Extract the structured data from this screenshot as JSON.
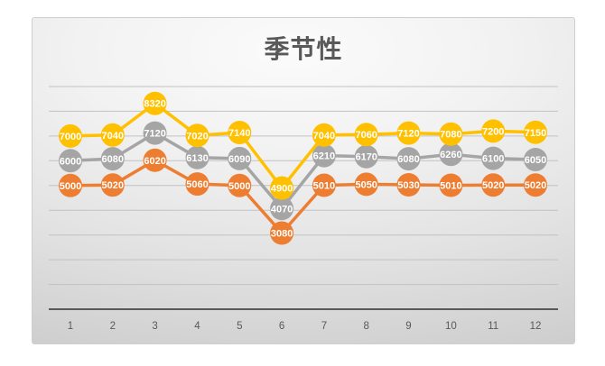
{
  "page": {
    "background_color": "#ffffff"
  },
  "chart": {
    "title": "季节性",
    "title_color": "#595959",
    "background_colors": [
      "#fbfbfb",
      "#e3e3e3",
      "#c5c5c5"
    ],
    "border_color": "#cfcfcf"
  },
  "chart_data": {
    "type": "line",
    "title": "季节性",
    "categories": [
      "1",
      "2",
      "3",
      "4",
      "5",
      "6",
      "7",
      "8",
      "9",
      "10",
      "11",
      "12"
    ],
    "series": [
      {
        "id": "orange-series",
        "color": "#ED7D31",
        "values": [
          5000,
          5020,
          6020,
          5060,
          5000,
          3080,
          5010,
          5050,
          5030,
          5010,
          5020,
          5020
        ]
      },
      {
        "id": "gray-series",
        "color": "#A5A5A5",
        "values": [
          6000,
          6080,
          7120,
          6130,
          6090,
          4070,
          6210,
          6170,
          6080,
          6260,
          6100,
          6050
        ]
      },
      {
        "id": "gold-series",
        "color": "#FFC000",
        "values": [
          7000,
          7040,
          8320,
          7020,
          7140,
          4900,
          7040,
          7060,
          7120,
          7080,
          7200,
          7150
        ]
      }
    ],
    "xlabel": "",
    "ylabel": "",
    "ylim": [
      0,
      9000
    ],
    "gridline_interval": 1000,
    "grid": true,
    "legend": "none",
    "y_tick_labels_visible": false,
    "marker": "circle",
    "data_labels": "center",
    "data_label_color": "#ffffff",
    "axis_color": "#595959",
    "gridline_color": "#c2c2c2",
    "tick_label_color": "#595959"
  }
}
